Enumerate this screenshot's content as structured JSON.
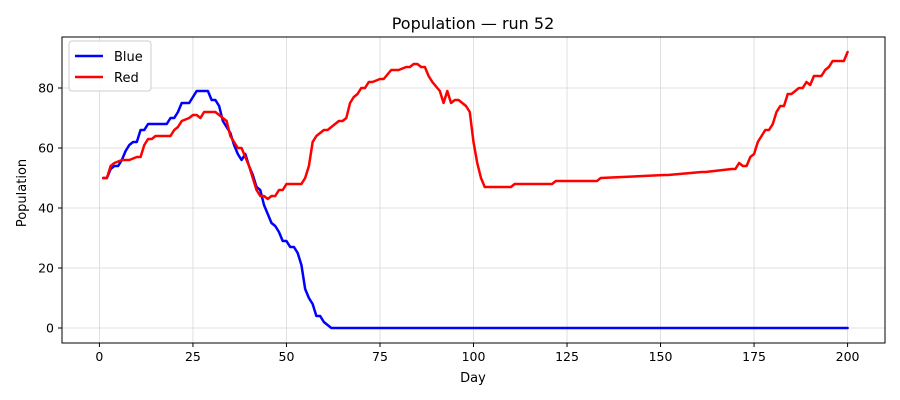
{
  "chart_data": {
    "type": "line",
    "title": "Population — run 52",
    "xlabel": "Day",
    "ylabel": "Population",
    "xlim": [
      -10,
      210
    ],
    "ylim": [
      -5,
      97
    ],
    "xticks": [
      0,
      25,
      50,
      75,
      100,
      125,
      150,
      175,
      200
    ],
    "yticks": [
      0,
      20,
      40,
      60,
      80
    ],
    "grid": true,
    "legend_position": "top-left",
    "series": [
      {
        "name": "Blue",
        "color": "#0000ff",
        "x": [
          1,
          2,
          3,
          4,
          5,
          6,
          7,
          8,
          9,
          10,
          11,
          12,
          13,
          14,
          16,
          18,
          19,
          20,
          21,
          22,
          24,
          25,
          26,
          28,
          29,
          30,
          31,
          32,
          33,
          34,
          35,
          36,
          37,
          38,
          39,
          40,
          41,
          42,
          43,
          44,
          45,
          46,
          47,
          48,
          49,
          50,
          51,
          52,
          53,
          54,
          55,
          56,
          57,
          58,
          59,
          60,
          61,
          62,
          63,
          65,
          70,
          80,
          90,
          100,
          110,
          120,
          130,
          140,
          150,
          160,
          170,
          180,
          190,
          200
        ],
        "y": [
          50,
          50,
          53,
          54,
          54,
          56,
          59,
          61,
          62,
          62,
          66,
          66,
          68,
          68,
          68,
          68,
          70,
          70,
          72,
          75,
          75,
          77,
          79,
          79,
          79,
          76,
          76,
          74,
          69,
          67,
          65,
          61,
          58,
          56,
          58,
          54,
          51,
          47,
          46,
          41,
          38,
          35,
          34,
          32,
          29,
          29,
          27,
          27,
          25,
          21,
          13,
          10,
          8,
          4,
          4,
          2,
          1,
          0,
          0,
          0,
          0,
          0,
          0,
          0,
          0,
          0,
          0,
          0,
          0,
          0,
          0,
          0,
          0,
          0
        ]
      },
      {
        "name": "Red",
        "color": "#ff0000",
        "x": [
          1,
          2,
          3,
          4,
          6,
          8,
          10,
          11,
          12,
          13,
          14,
          15,
          17,
          19,
          20,
          21,
          22,
          24,
          25,
          26,
          27,
          28,
          30,
          31,
          33,
          34,
          35,
          36,
          37,
          38,
          39,
          40,
          41,
          42,
          43,
          44,
          45,
          46,
          47,
          48,
          49,
          50,
          51,
          52,
          53,
          54,
          55,
          56,
          57,
          58,
          60,
          61,
          63,
          64,
          65,
          66,
          67,
          68,
          69,
          70,
          71,
          72,
          73,
          75,
          76,
          78,
          79,
          80,
          82,
          83,
          84,
          85,
          86,
          87,
          88,
          89,
          91,
          92,
          93,
          94,
          95,
          96,
          97,
          98,
          99,
          100,
          101,
          102,
          103,
          110,
          111,
          121,
          122,
          133,
          134,
          151,
          152,
          161,
          162,
          169,
          170,
          171,
          172,
          173,
          174,
          175,
          176,
          177,
          178,
          179,
          180,
          181,
          182,
          183,
          184,
          185,
          186,
          187,
          188,
          189,
          190,
          191,
          192,
          193,
          194,
          195,
          196,
          197,
          198,
          199,
          200
        ],
        "y": [
          50,
          50,
          54,
          55,
          56,
          56,
          57,
          57,
          61,
          63,
          63,
          64,
          64,
          64,
          66,
          67,
          69,
          70,
          71,
          71,
          70,
          72,
          72,
          72,
          70,
          69,
          64,
          62,
          60,
          60,
          57,
          54,
          50,
          46,
          44,
          44,
          43,
          44,
          44,
          46,
          46,
          48,
          48,
          48,
          48,
          48,
          50,
          54,
          62,
          64,
          66,
          66,
          68,
          69,
          69,
          70,
          75,
          77,
          78,
          80,
          80,
          82,
          82,
          83,
          83,
          86,
          86,
          86,
          87,
          87,
          88,
          88,
          87,
          87,
          84,
          82,
          79,
          75,
          79,
          75,
          76,
          76,
          75,
          74,
          72,
          62,
          55,
          50,
          47,
          47,
          48,
          48,
          49,
          49,
          50,
          51,
          51,
          52,
          52,
          53,
          53,
          55,
          54,
          54,
          57,
          58,
          62,
          64,
          66,
          66,
          68,
          72,
          74,
          74,
          78,
          78,
          79,
          80,
          80,
          82,
          81,
          84,
          84,
          84,
          86,
          87,
          89,
          89,
          89,
          89,
          92
        ]
      }
    ]
  }
}
